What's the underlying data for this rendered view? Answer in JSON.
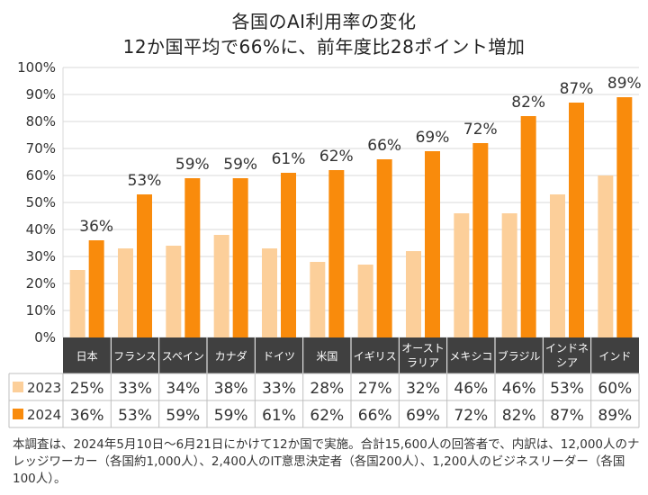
{
  "chart_data": {
    "type": "bar",
    "title": "各国のAI利用率の変化",
    "subtitle": "12か国平均で66%に、前年度比28ポイント増加",
    "categories": [
      "日本",
      "フランス",
      "スペイン",
      "カナダ",
      "ドイツ",
      "米国",
      "イギリス",
      "オーストラリア",
      "メキシコ",
      "ブラジル",
      "インドネシア",
      "インド"
    ],
    "category_lines": [
      [
        "日本"
      ],
      [
        "フランス"
      ],
      [
        "スペイン"
      ],
      [
        "カナダ"
      ],
      [
        "ドイツ"
      ],
      [
        "米国"
      ],
      [
        "イギリス"
      ],
      [
        "オースト",
        "ラリア"
      ],
      [
        "メキシコ"
      ],
      [
        "ブラジル"
      ],
      [
        "インドネ",
        "シア"
      ],
      [
        "インド"
      ]
    ],
    "series": [
      {
        "name": "2023",
        "color": "#fccf9a",
        "values": [
          25,
          33,
          34,
          38,
          33,
          28,
          27,
          32,
          46,
          46,
          53,
          60
        ]
      },
      {
        "name": "2024",
        "color": "#f98b0c",
        "values": [
          36,
          53,
          59,
          59,
          61,
          62,
          66,
          69,
          72,
          82,
          87,
          89
        ]
      }
    ],
    "ylim": [
      0,
      100
    ],
    "yticks": [
      0,
      10,
      20,
      30,
      40,
      50,
      60,
      70,
      80,
      90,
      100
    ],
    "ytick_labels": [
      "0%",
      "10%",
      "20%",
      "30%",
      "40%",
      "50%",
      "60%",
      "70%",
      "80%",
      "90%",
      "100%"
    ],
    "value_suffix": "%",
    "data_labels_series": "2024",
    "grid": true,
    "legend": "table-left"
  },
  "footnote": "本調査は、2024年5月10日〜6月21日にかけて12か国で実施。合計15,600人の回答者で、内訳は、12,000人のナレッジワーカー（各国約1,000人）、2,400人のIT意思決定者（各国200人）、1,200人のビジネスリーダー（各国100人）。"
}
